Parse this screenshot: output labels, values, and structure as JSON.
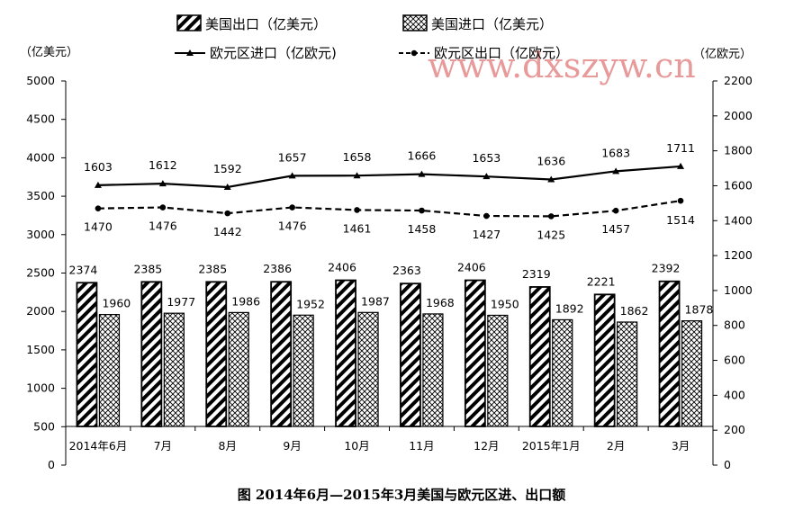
{
  "chart_data": {
    "type": "bar",
    "title": "",
    "caption": "图 2014年6月—2015年3月美国与欧元区进、出口额",
    "categories": [
      "2014年6月",
      "7月",
      "8月",
      "9月",
      "10月",
      "11月",
      "12月",
      "2015年1月",
      "2月",
      "3月"
    ],
    "left_axis": {
      "label": "（亿美元）",
      "min": 0,
      "max": 5000,
      "step": 500,
      "ticks": [
        "0",
        "500",
        "1000",
        "1500",
        "2000",
        "2500",
        "3000",
        "3500",
        "4000",
        "4500",
        "5000"
      ]
    },
    "right_axis": {
      "label": "（亿欧元）",
      "min": 0,
      "max": 2200,
      "step": 200,
      "ticks": [
        "0",
        "200",
        "400",
        "600",
        "800",
        "1000",
        "1200",
        "1400",
        "1600",
        "1800",
        "2000",
        "2200"
      ]
    },
    "series": [
      {
        "name": "美国出口（亿美元）",
        "kind": "bar",
        "axis": "left",
        "pattern": "diagonal",
        "values": [
          2374,
          2385,
          2385,
          2386,
          2406,
          2363,
          2406,
          2319,
          2221,
          2392
        ],
        "labels": [
          "2374",
          "2385",
          "2385",
          "2386",
          "2406",
          "2363",
          "2406",
          "2319",
          "2221",
          "2392"
        ]
      },
      {
        "name": "美国进口（亿美元）",
        "kind": "bar",
        "axis": "left",
        "pattern": "crosshatch",
        "values": [
          1960,
          1977,
          1986,
          1952,
          1987,
          1968,
          1950,
          1892,
          1862,
          1878
        ],
        "labels": [
          "1960",
          "1977",
          "1986",
          "1952",
          "1987",
          "1968",
          "1950",
          "1892",
          "1862",
          "1878"
        ]
      },
      {
        "name": "欧元区进口（亿欧元)",
        "kind": "line",
        "axis": "right",
        "style": "solid",
        "marker": "triangle",
        "values": [
          1603,
          1612,
          1592,
          1657,
          1658,
          1666,
          1653,
          1636,
          1683,
          1711
        ],
        "labels": [
          "1603",
          "1612",
          "1592",
          "1657",
          "1658",
          "1666",
          "1653",
          "1636",
          "1683",
          "1711"
        ]
      },
      {
        "name": "欧元区出口（亿欧元）",
        "kind": "line",
        "axis": "right",
        "style": "dashed",
        "marker": "circle",
        "values": [
          1470,
          1476,
          1442,
          1476,
          1461,
          1458,
          1427,
          1425,
          1457,
          1514
        ],
        "labels": [
          "1470",
          "1476",
          "1442",
          "1476",
          "1461",
          "1458",
          "1427",
          "1425",
          "1457",
          "1514"
        ]
      }
    ],
    "legend_placement": "top",
    "grid": false,
    "watermark": "www.dxszyw.cn",
    "colors": {
      "ink": "#000000",
      "watermark": "#e89a9a",
      "background": "#ffffff"
    }
  }
}
